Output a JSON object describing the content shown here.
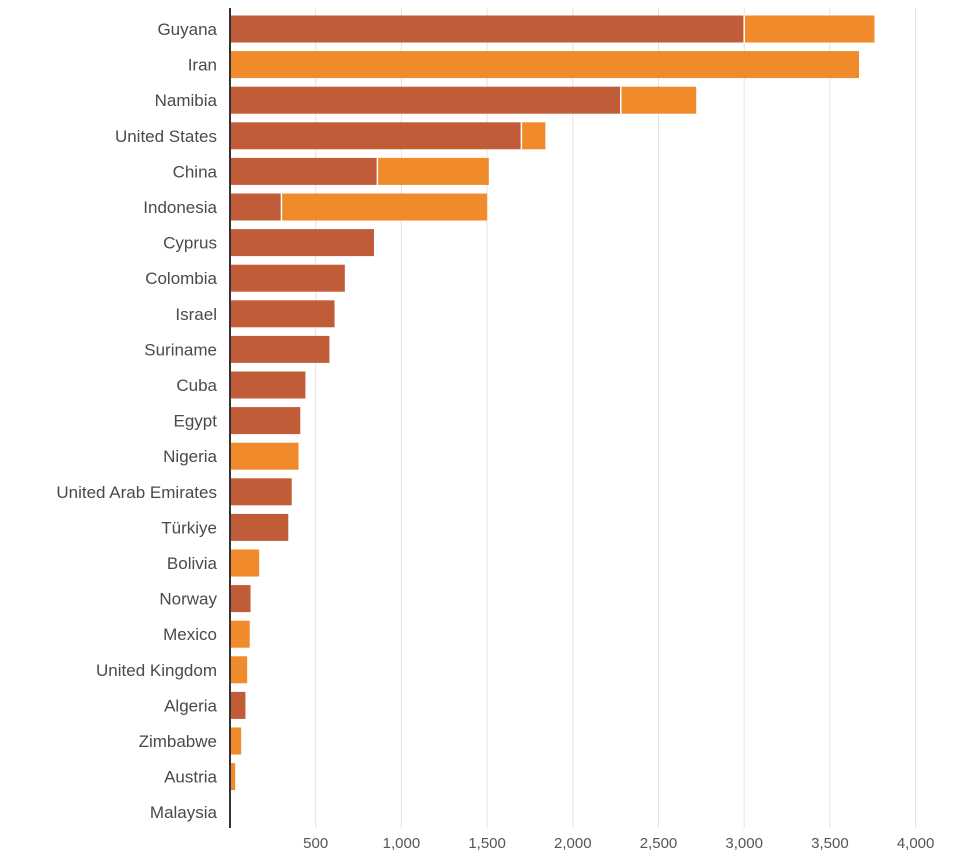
{
  "chart_data": {
    "type": "bar",
    "orientation": "horizontal",
    "stacked": true,
    "title": "",
    "xlabel": "",
    "ylabel": "",
    "xlim": [
      0,
      4000
    ],
    "xticks": [
      500,
      1000,
      1500,
      2000,
      2500,
      3000,
      3500,
      4000
    ],
    "xtick_labels": [
      "500",
      "1,000",
      "1,500",
      "2,000",
      "2,500",
      "3,000",
      "3,500",
      "4,000"
    ],
    "grid": "vertical",
    "legend": "none",
    "categories": [
      "Guyana",
      "Iran",
      "Namibia",
      "United States",
      "China",
      "Indonesia",
      "Cyprus",
      "Colombia",
      "Israel",
      "Suriname",
      "Cuba",
      "Egypt",
      "Nigeria",
      "United Arab Emirates",
      "Türkiye",
      "Bolivia",
      "Norway",
      "Mexico",
      "United Kingdom",
      "Algeria",
      "Zimbabwe",
      "Austria",
      "Malaysia"
    ],
    "series": [
      {
        "color": "#c05d38",
        "values": [
          3000,
          0,
          2280,
          1700,
          860,
          300,
          840,
          670,
          610,
          580,
          440,
          410,
          0,
          360,
          340,
          0,
          120,
          0,
          0,
          90,
          0,
          0,
          0
        ]
      },
      {
        "color": "#f08a2a",
        "values": [
          760,
          3670,
          440,
          140,
          650,
          1200,
          0,
          0,
          0,
          0,
          0,
          0,
          400,
          0,
          0,
          170,
          0,
          115,
          100,
          0,
          65,
          30,
          5
        ]
      }
    ]
  }
}
